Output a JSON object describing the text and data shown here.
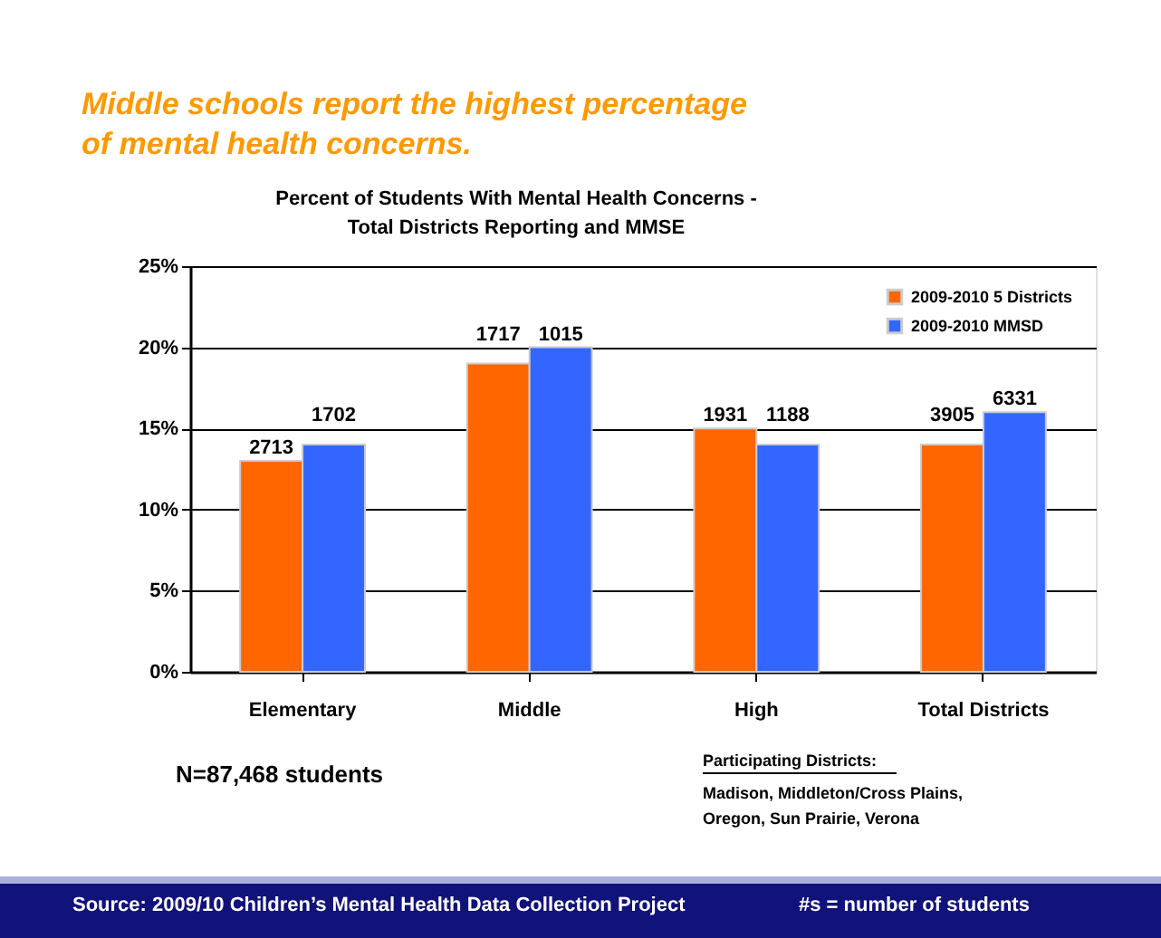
{
  "chart_data": {
    "type": "bar",
    "title": "Middle schools report the highest percentage\nof mental health concerns.",
    "subtitle": "Percent of Students With Mental Health Concerns -\nTotal Districts Reporting and MMSE",
    "categories": [
      "Elementary",
      "Middle",
      "High",
      "Total Districts"
    ],
    "series": [
      {
        "name": "2009-2010 5 Districts",
        "color": "#ff6600",
        "values": [
          13,
          19,
          15,
          14
        ]
      },
      {
        "name": "2009-2010 MMSD",
        "color": "#3366ff",
        "values": [
          14,
          20,
          14,
          16
        ]
      }
    ],
    "ylim": [
      0,
      25
    ],
    "yticks": [
      {
        "value": 0,
        "label": "0%"
      },
      {
        "value": 5,
        "label": "5%"
      },
      {
        "value": 10,
        "label": "10%"
      },
      {
        "value": 15,
        "label": "15%"
      },
      {
        "value": 20,
        "label": "20%"
      },
      {
        "value": 25,
        "label": "25%"
      }
    ],
    "grid": "y",
    "legend": "top right",
    "annotations": [
      {
        "text": "2713",
        "x": "Elementary",
        "y": 13
      },
      {
        "text": "1717",
        "x": "Middle",
        "y": 19
      },
      {
        "text": "1931",
        "x": "High",
        "y": 15
      },
      {
        "text": "3905",
        "x": "Total Districts",
        "y": 14
      },
      {
        "text": "1702",
        "x": "Elementary",
        "y": 14
      },
      {
        "text": "1015",
        "x": "Middle",
        "y": 20
      },
      {
        "text": "1188",
        "x": "High",
        "y": 14
      },
      {
        "text": "6331",
        "x": "Total Districts",
        "y": 16
      },
      "N=87,468 students",
      "Participating Districts:",
      "Madison, Middleton/Cross Plains,\nOregon, Sun Prairie, Verona",
      "Source: 2009/10 Children’s Mental Health Data Collection Project",
      "#s = number of students"
    ]
  }
}
